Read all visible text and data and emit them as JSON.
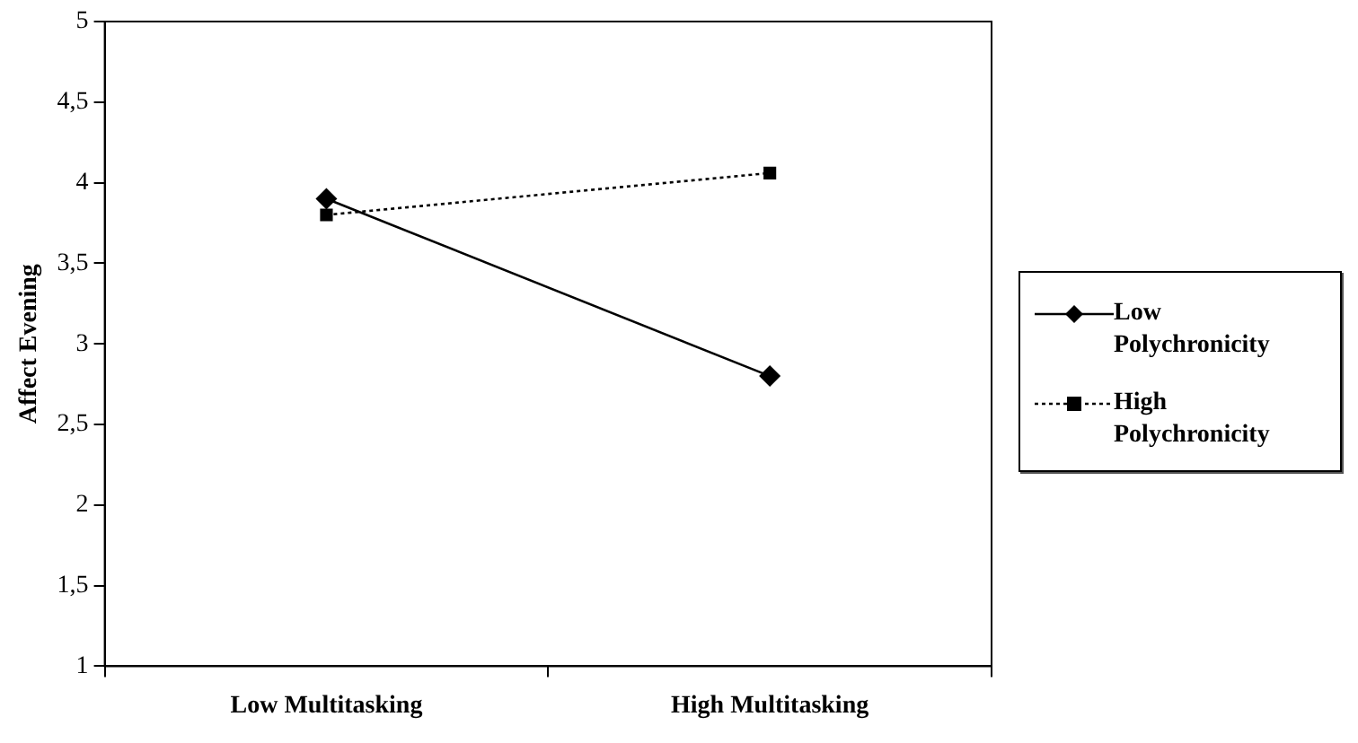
{
  "chart_data": {
    "type": "line",
    "ylabel": "Affect Evening",
    "categories": [
      "Low Multitasking",
      "High Multitasking"
    ],
    "series": [
      {
        "name": "Low Polychronicity",
        "color": "#000000",
        "values": [
          3.9,
          2.8
        ],
        "marker": "diamond",
        "line_style": "solid"
      },
      {
        "name": "High Polychronicity",
        "color": "#000000",
        "values": [
          3.8,
          4.06
        ],
        "marker": "square",
        "line_style": "dotted"
      }
    ],
    "ylim": [
      1,
      5
    ],
    "yticks": [
      1,
      {
        "value": 1.5,
        "label": "1,5"
      },
      2,
      {
        "value": 2.5,
        "label": "2,5"
      },
      3,
      {
        "value": 3.5,
        "label": "3,5"
      },
      4,
      {
        "value": 4.5,
        "label": "4,5"
      },
      5
    ],
    "grid": false,
    "legend": "right"
  }
}
